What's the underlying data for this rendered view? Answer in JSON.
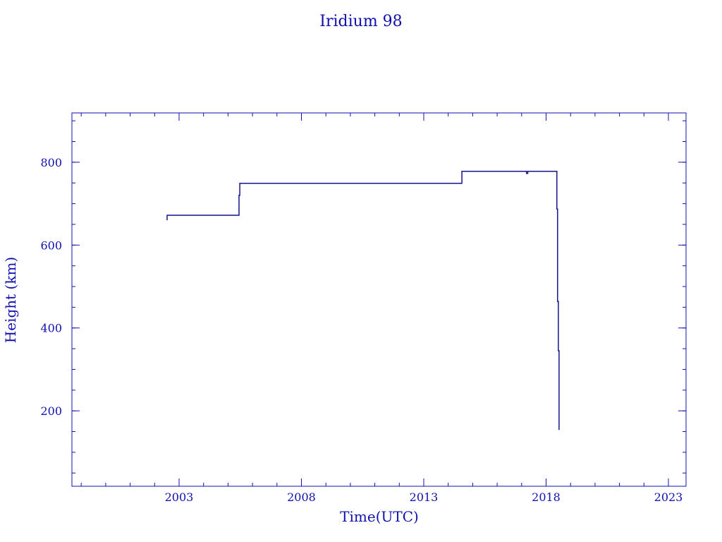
{
  "chart_data": {
    "type": "line",
    "title": "Iridium 98",
    "xlabel": "Time(UTC)",
    "ylabel": "Height (km)",
    "xlim": [
      1998.62,
      2023.72
    ],
    "ylim": [
      18,
      919
    ],
    "xticks": [
      2003,
      2008,
      2013,
      2018,
      2023
    ],
    "xtick_labels": [
      "2003",
      "2008",
      "2013",
      "2018",
      "2023"
    ],
    "yticks": [
      200,
      400,
      600,
      800
    ],
    "ytick_labels": [
      "200",
      "400",
      "600",
      "800"
    ],
    "x_minor_step": 1,
    "y_minor_step": 50,
    "grid": false,
    "color": "#14148c",
    "text_color": "#1010b0",
    "series": [
      {
        "x": [
          2002.51,
          2002.51,
          2005.45,
          2005.45,
          2005.48,
          2005.48,
          2014.56,
          2014.56,
          2017.2,
          2017.2,
          2017.25,
          2017.25,
          2018.44,
          2018.44,
          2018.47,
          2018.47,
          2018.5,
          2018.5,
          2018.53,
          2018.53
        ],
        "y": [
          660,
          672,
          672,
          720,
          720,
          749,
          749,
          778,
          778,
          773,
          773,
          778,
          778,
          687,
          687,
          464,
          464,
          345,
          345,
          154
        ]
      }
    ]
  }
}
